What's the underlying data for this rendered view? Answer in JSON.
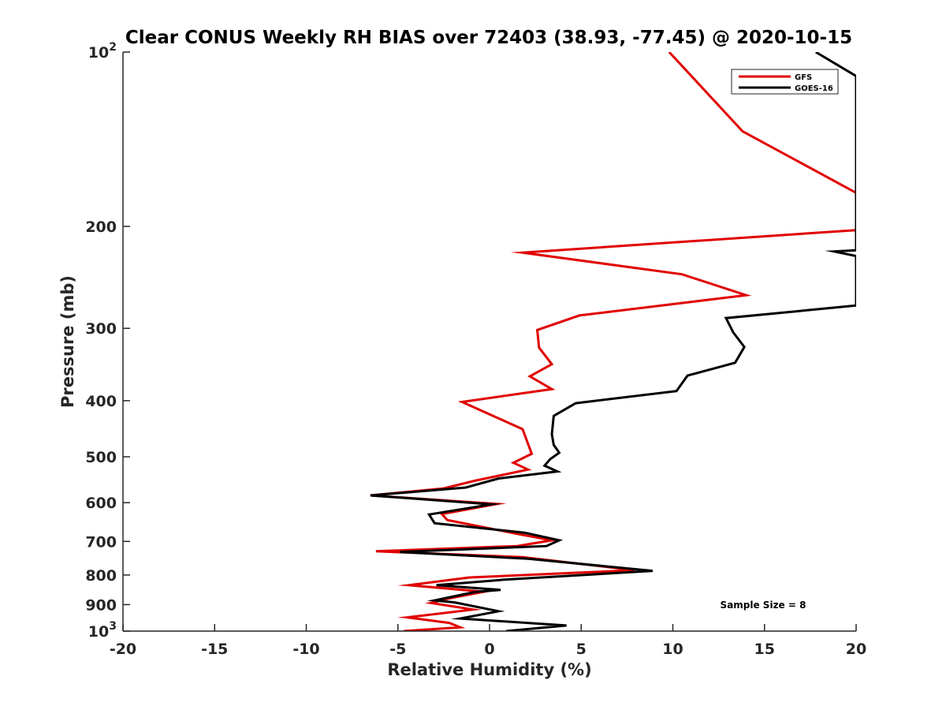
{
  "chart_data": {
    "type": "line",
    "title": "Clear CONUS Weekly RH BIAS over 72403 (38.93, -77.45) @ 2020-10-15",
    "xlabel": "Relative Humidity (%)",
    "ylabel": "Pressure (mb)",
    "xlim": [
      -20,
      20
    ],
    "ylim": [
      100,
      1000
    ],
    "yscale": "log",
    "y_reversed": true,
    "grid": false,
    "legend_position": "top-right",
    "x_ticks": [
      "-20",
      "-15",
      "-10",
      "-5",
      "0",
      "5",
      "10",
      "15",
      "20"
    ],
    "y_ticks": [
      {
        "value": 100,
        "label": "10",
        "sup": "2"
      },
      {
        "value": 200,
        "label": "200",
        "sup": ""
      },
      {
        "value": 300,
        "label": "300",
        "sup": ""
      },
      {
        "value": 400,
        "label": "400",
        "sup": ""
      },
      {
        "value": 500,
        "label": "500",
        "sup": ""
      },
      {
        "value": 600,
        "label": "600",
        "sup": ""
      },
      {
        "value": 700,
        "label": "700",
        "sup": ""
      },
      {
        "value": 800,
        "label": "800",
        "sup": ""
      },
      {
        "value": 900,
        "label": "900",
        "sup": ""
      },
      {
        "value": 1000,
        "label": "10",
        "sup": "3"
      }
    ],
    "series": [
      {
        "name": "GFS",
        "color": "#e00000",
        "points": [
          [
            9.8,
            100
          ],
          [
            13.8,
            137
          ],
          [
            20,
            175
          ],
          [
            20,
            203
          ],
          [
            1.8,
            222
          ],
          [
            10.5,
            242
          ],
          [
            14,
            263
          ],
          [
            4.9,
            285
          ],
          [
            2.6,
            302
          ],
          [
            2.7,
            324
          ],
          [
            3.4,
            346
          ],
          [
            2.2,
            363
          ],
          [
            3.4,
            382
          ],
          [
            -1.5,
            402
          ],
          [
            0.2,
            425
          ],
          [
            1.8,
            448
          ],
          [
            2.3,
            494
          ],
          [
            1.3,
            512
          ],
          [
            2.1,
            526
          ],
          [
            -0.8,
            550
          ],
          [
            -2.5,
            567
          ],
          [
            -6.5,
            583
          ],
          [
            0.4,
            603
          ],
          [
            -2.6,
            628
          ],
          [
            -2.3,
            643
          ],
          [
            1.6,
            680
          ],
          [
            3.4,
            697
          ],
          [
            1.5,
            713
          ],
          [
            -6.2,
            728
          ],
          [
            1.8,
            745
          ],
          [
            7.9,
            785
          ],
          [
            -1.1,
            808
          ],
          [
            -4.4,
            833
          ],
          [
            -0.3,
            855
          ],
          [
            -2.2,
            878
          ],
          [
            -3.2,
            894
          ],
          [
            -0.9,
            918
          ],
          [
            -4.5,
            947
          ],
          [
            -2.2,
            968
          ],
          [
            -1.6,
            985
          ],
          [
            -4.7,
            1000
          ]
        ]
      },
      {
        "name": "GOES-16",
        "color": "#000000",
        "points": [
          [
            17.8,
            100
          ],
          [
            20,
            110
          ],
          [
            20,
            220
          ],
          [
            18.8,
            221
          ],
          [
            20,
            225
          ],
          [
            20,
            274
          ],
          [
            12.9,
            288
          ],
          [
            13.3,
            305
          ],
          [
            13.9,
            323
          ],
          [
            13.4,
            344
          ],
          [
            10.8,
            362
          ],
          [
            10.2,
            385
          ],
          [
            4.7,
            404
          ],
          [
            3.5,
            425
          ],
          [
            3.4,
            457
          ],
          [
            3.5,
            477
          ],
          [
            3.8,
            492
          ],
          [
            3.3,
            505
          ],
          [
            3.0,
            518
          ],
          [
            3.7,
            530
          ],
          [
            0.5,
            545
          ],
          [
            -1.3,
            565
          ],
          [
            -6.5,
            583
          ],
          [
            0.1,
            604
          ],
          [
            -3.3,
            629
          ],
          [
            -3.0,
            651
          ],
          [
            1.9,
            676
          ],
          [
            3.8,
            697
          ],
          [
            3.1,
            713
          ],
          [
            -4.9,
            730
          ],
          [
            2.1,
            750
          ],
          [
            8.9,
            787
          ],
          [
            0.8,
            815
          ],
          [
            -2.9,
            833
          ],
          [
            0.6,
            849
          ],
          [
            -0.8,
            856
          ],
          [
            -3.0,
            885
          ],
          [
            -1.9,
            892
          ],
          [
            0.5,
            924
          ],
          [
            -1.6,
            951
          ],
          [
            4.2,
            978
          ],
          [
            0.9,
            1000
          ]
        ]
      }
    ],
    "annotation": "Sample Size = 8"
  }
}
